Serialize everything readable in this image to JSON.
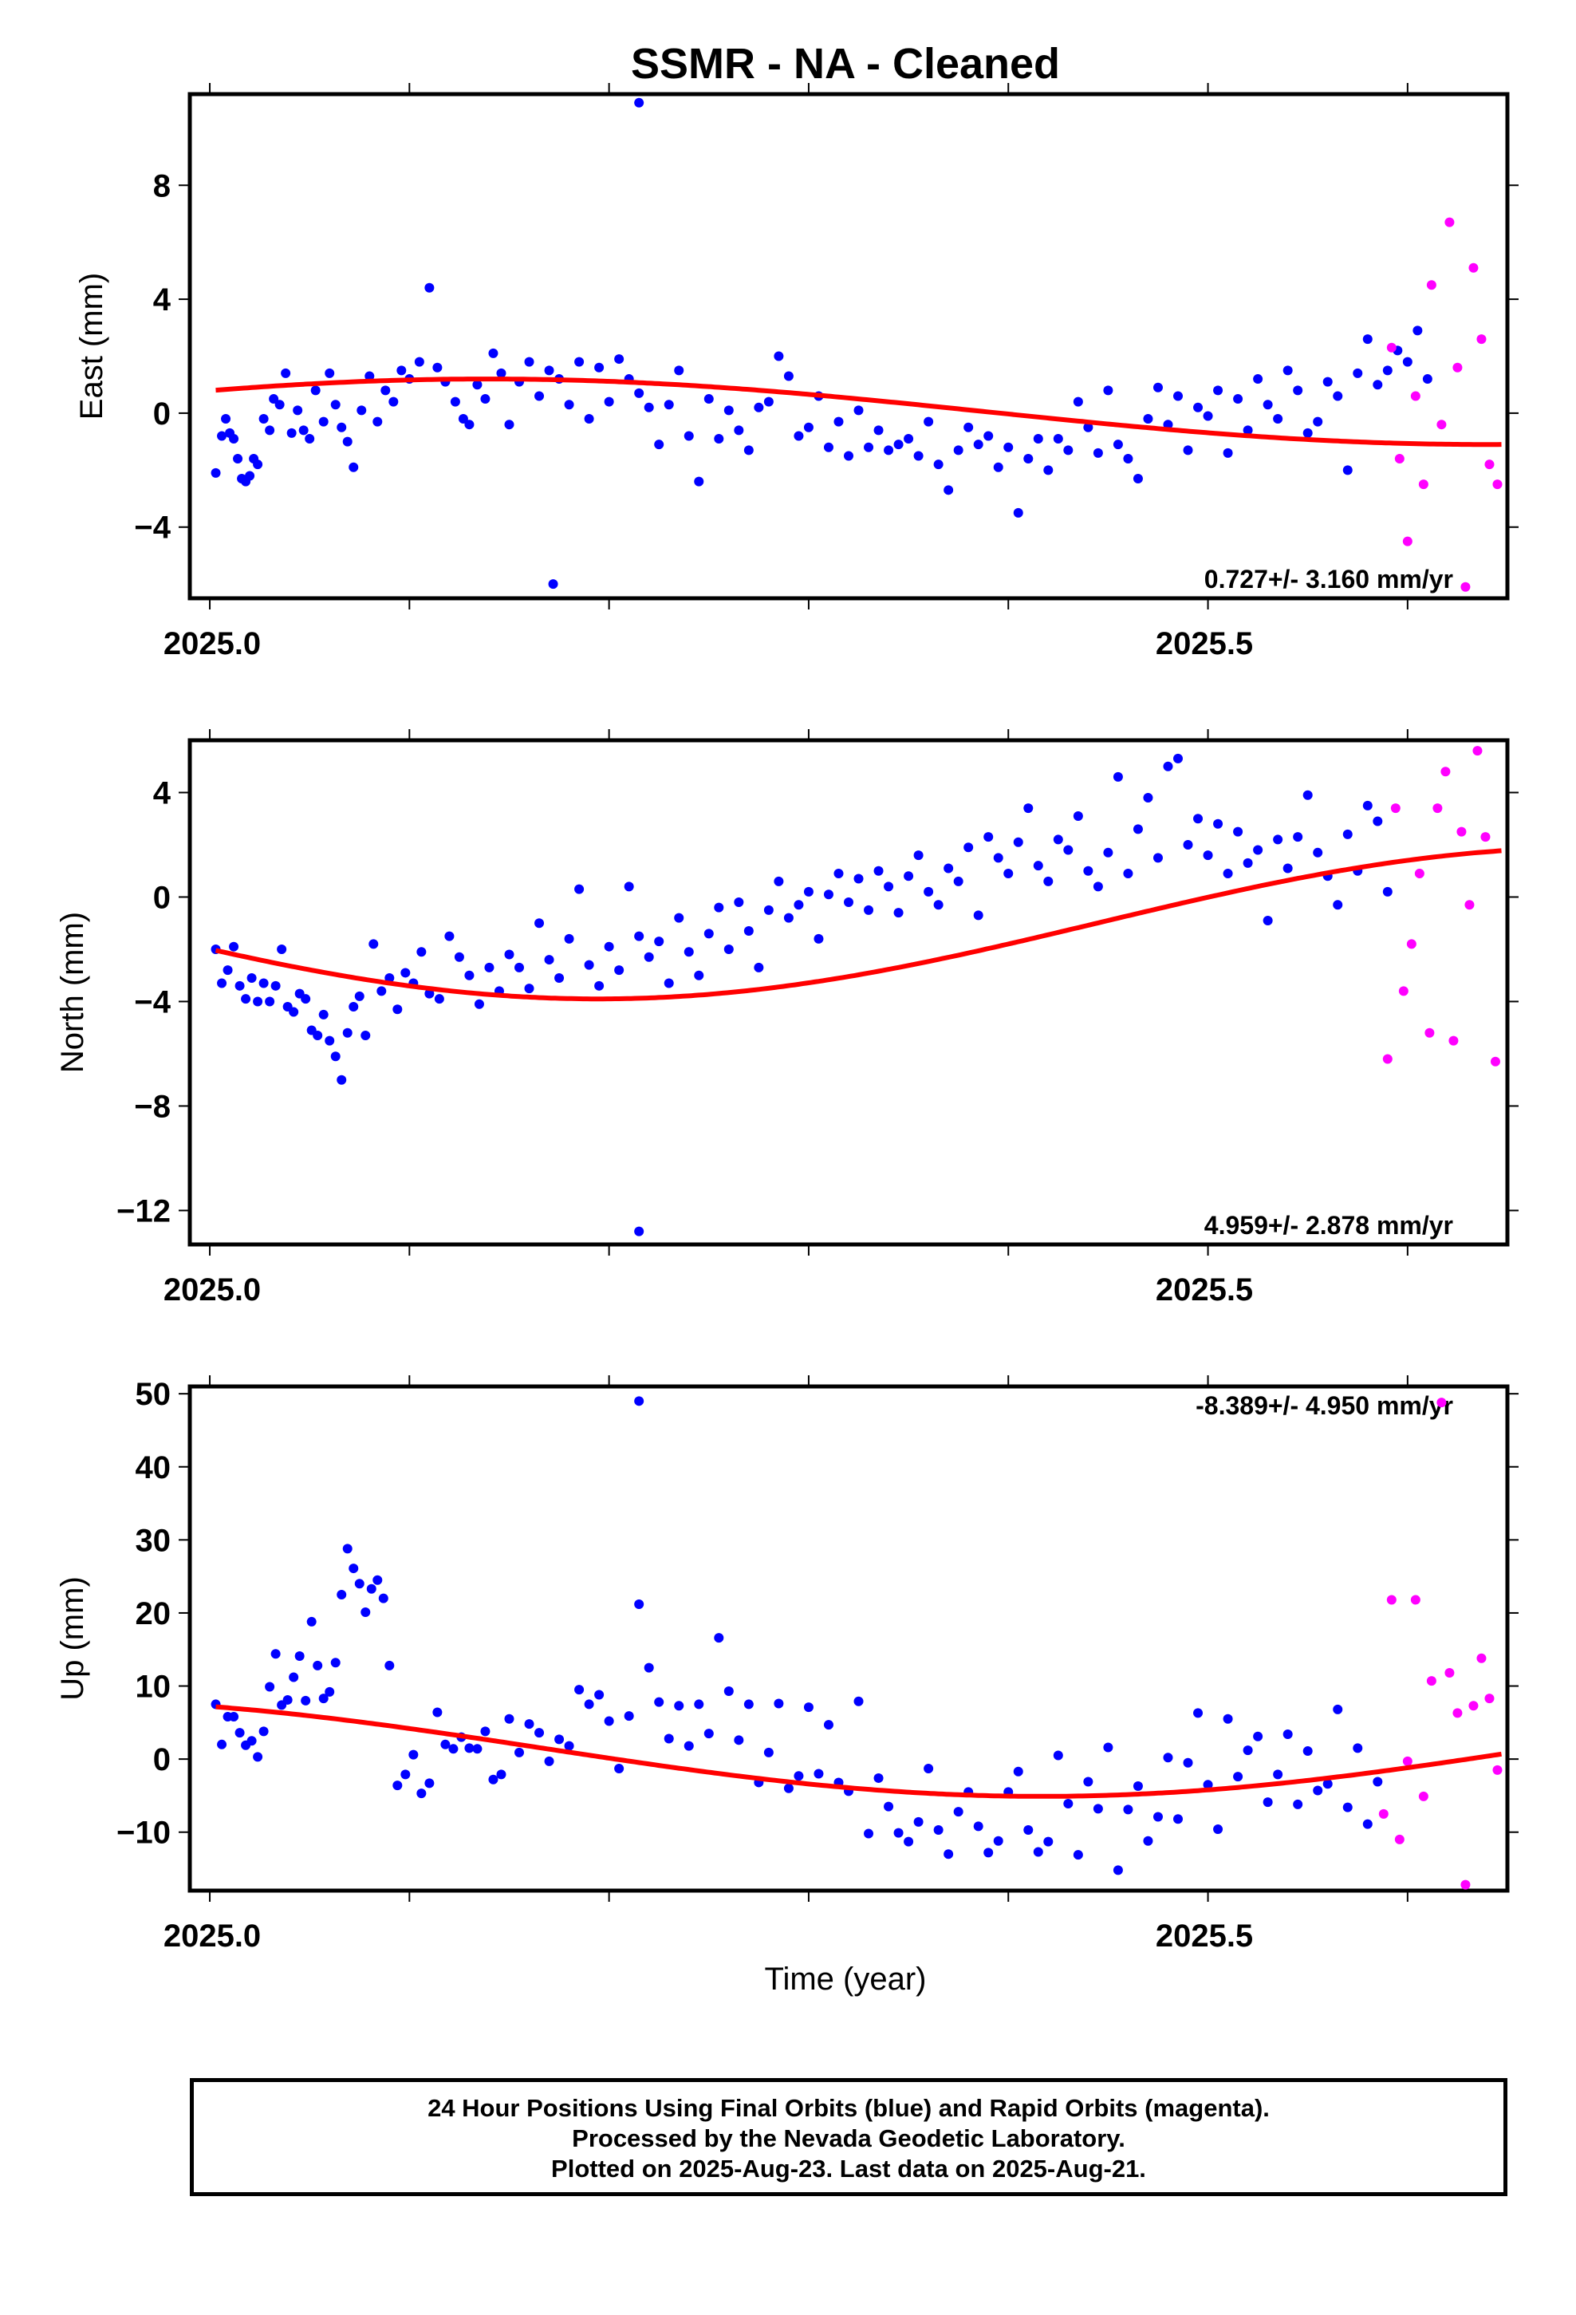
{
  "title": "SSMR  - NA - Cleaned",
  "x_axis_label": "Time (year)",
  "x_tick_labels": [
    "2025.0",
    "2025.5"
  ],
  "colors": {
    "final": "#0000ff",
    "rapid": "#ff00ff",
    "fit": "#ff0000",
    "frame": "#000000"
  },
  "footer": {
    "line1": "24 Hour Positions Using Final Orbits (blue) and Rapid Orbits (magenta).",
    "line2": "Processed by the Nevada Geodetic Laboratory.",
    "line3": "Plotted on 2025-Aug-23. Last data on 2025-Aug-21."
  },
  "chart_data": [
    {
      "type": "scatter",
      "ylabel": "East (mm)",
      "rate_label": "0.727+/- 3.160 mm/yr",
      "rate_position": "bottom-right",
      "xlim": [
        2024.99,
        2025.65
      ],
      "ylim": [
        -6.5,
        11.2
      ],
      "yticks": [
        -4,
        0,
        4,
        8
      ],
      "ytick_labels": [
        "−4",
        "0",
        "4",
        "8"
      ],
      "xticks": [
        2025.0,
        2025.1,
        2025.2,
        2025.3,
        2025.4,
        2025.5,
        2025.6
      ],
      "fit": {
        "offset": 0.05,
        "amp": 1.15,
        "phase_deg": 40
      },
      "final": {
        "x": [
          2025.003,
          2025.006,
          2025.008,
          2025.01,
          2025.012,
          2025.014,
          2025.016,
          2025.018,
          2025.02,
          2025.022,
          2025.024,
          2025.027,
          2025.03,
          2025.032,
          2025.035,
          2025.038,
          2025.041,
          2025.044,
          2025.047,
          2025.05,
          2025.053,
          2025.057,
          2025.06,
          2025.063,
          2025.066,
          2025.069,
          2025.072,
          2025.076,
          2025.08,
          2025.084,
          2025.088,
          2025.092,
          2025.096,
          2025.1,
          2025.105,
          2025.11,
          2025.114,
          2025.118,
          2025.123,
          2025.127,
          2025.13,
          2025.134,
          2025.138,
          2025.142,
          2025.146,
          2025.15,
          2025.155,
          2025.16,
          2025.165,
          2025.17,
          2025.175,
          2025.18,
          2025.185,
          2025.19,
          2025.195,
          2025.2,
          2025.205,
          2025.21,
          2025.215,
          2025.22,
          2025.225,
          2025.23,
          2025.235,
          2025.24,
          2025.245,
          2025.25,
          2025.255,
          2025.26,
          2025.265,
          2025.27,
          2025.275,
          2025.28,
          2025.285,
          2025.29,
          2025.295,
          2025.3,
          2025.305,
          2025.31,
          2025.315,
          2025.32,
          2025.325,
          2025.33,
          2025.335,
          2025.34,
          2025.345,
          2025.35,
          2025.355,
          2025.36,
          2025.365,
          2025.37,
          2025.375,
          2025.38,
          2025.385,
          2025.39,
          2025.395,
          2025.4,
          2025.405,
          2025.41,
          2025.415,
          2025.42,
          2025.425,
          2025.43,
          2025.435,
          2025.44,
          2025.445,
          2025.45,
          2025.455,
          2025.46,
          2025.465,
          2025.47,
          2025.475,
          2025.48,
          2025.485,
          2025.49,
          2025.495,
          2025.5,
          2025.505,
          2025.51,
          2025.515,
          2025.52,
          2025.525,
          2025.53,
          2025.535,
          2025.54,
          2025.545,
          2025.55,
          2025.555,
          2025.56,
          2025.565,
          2025.57,
          2025.575,
          2025.58,
          2025.585,
          2025.59,
          2025.595,
          2025.6,
          2025.605,
          2025.61,
          2025.172,
          2025.215
        ],
        "y": [
          -2.1,
          -0.8,
          -0.2,
          -0.7,
          -0.9,
          -1.6,
          -2.3,
          -2.4,
          -2.2,
          -1.6,
          -1.8,
          -0.2,
          -0.6,
          0.5,
          0.3,
          1.4,
          -0.7,
          0.1,
          -0.6,
          -0.9,
          0.8,
          -0.3,
          1.4,
          0.3,
          -0.5,
          -1.0,
          -1.9,
          0.1,
          1.3,
          -0.3,
          0.8,
          0.4,
          1.5,
          1.2,
          1.8,
          4.4,
          1.6,
          1.1,
          0.4,
          -0.2,
          -0.4,
          1.0,
          0.5,
          2.1,
          1.4,
          -0.4,
          1.1,
          1.8,
          0.6,
          1.5,
          1.2,
          0.3,
          1.8,
          -0.2,
          1.6,
          0.4,
          1.9,
          1.2,
          0.7,
          0.2,
          -1.1,
          0.3,
          1.5,
          -0.8,
          -2.4,
          0.5,
          -0.9,
          0.1,
          -0.6,
          -1.3,
          0.2,
          0.4,
          2.0,
          1.3,
          -0.8,
          -0.5,
          0.6,
          -1.2,
          -0.3,
          -1.5,
          0.1,
          -1.2,
          -0.6,
          -1.3,
          -1.1,
          -0.9,
          -1.5,
          -0.3,
          -1.8,
          -2.7,
          -1.3,
          -0.5,
          -1.1,
          -0.8,
          -1.9,
          -1.2,
          -3.5,
          -1.6,
          -0.9,
          -2.0,
          -0.9,
          -1.3,
          0.4,
          -0.5,
          -1.4,
          0.8,
          -1.1,
          -1.6,
          -2.3,
          -0.2,
          0.9,
          -0.4,
          0.6,
          -1.3,
          0.2,
          -0.1,
          0.8,
          -1.4,
          0.5,
          -0.6,
          1.2,
          0.3,
          -0.2,
          1.5,
          0.8,
          -0.7,
          -0.3,
          1.1,
          0.6,
          -2.0,
          1.4,
          2.6,
          1.0,
          1.5,
          2.2,
          1.8,
          2.9,
          1.2,
          -6.0,
          10.9
        ]
      },
      "rapid": {
        "x": [
          2025.592,
          2025.596,
          2025.6,
          2025.604,
          2025.608,
          2025.612,
          2025.617,
          2025.621,
          2025.625,
          2025.629,
          2025.633,
          2025.637,
          2025.641,
          2025.645
        ],
        "y": [
          2.3,
          -1.6,
          -4.5,
          0.6,
          -2.5,
          4.5,
          -0.4,
          6.7,
          1.6,
          -6.1,
          5.1,
          2.6,
          -1.8,
          -2.5
        ]
      }
    },
    {
      "type": "scatter",
      "ylabel": "North (mm)",
      "rate_label": "4.959+/- 2.878 mm/yr",
      "rate_position": "bottom-right",
      "xlim": [
        2024.99,
        2025.65
      ],
      "ylim": [
        -13.3,
        6.0
      ],
      "yticks": [
        -12,
        -8,
        -4,
        0,
        4
      ],
      "ytick_labels": [
        "−12",
        "−8",
        "−4",
        "0",
        "4"
      ],
      "xticks": [
        2025.0,
        2025.1,
        2025.2,
        2025.3,
        2025.4,
        2025.5,
        2025.6
      ],
      "fit": {
        "offset": -1.0,
        "amp": 2.9,
        "phase_deg": 200
      },
      "final": {
        "x": [
          2025.003,
          2025.006,
          2025.009,
          2025.012,
          2025.015,
          2025.018,
          2025.021,
          2025.024,
          2025.027,
          2025.03,
          2025.033,
          2025.036,
          2025.039,
          2025.042,
          2025.045,
          2025.048,
          2025.051,
          2025.054,
          2025.057,
          2025.06,
          2025.063,
          2025.066,
          2025.069,
          2025.072,
          2025.075,
          2025.078,
          2025.082,
          2025.086,
          2025.09,
          2025.094,
          2025.098,
          2025.102,
          2025.106,
          2025.11,
          2025.115,
          2025.12,
          2025.125,
          2025.13,
          2025.135,
          2025.14,
          2025.145,
          2025.15,
          2025.155,
          2025.16,
          2025.165,
          2025.17,
          2025.175,
          2025.18,
          2025.185,
          2025.19,
          2025.195,
          2025.2,
          2025.205,
          2025.21,
          2025.215,
          2025.22,
          2025.225,
          2025.23,
          2025.235,
          2025.24,
          2025.245,
          2025.25,
          2025.255,
          2025.26,
          2025.265,
          2025.27,
          2025.275,
          2025.28,
          2025.285,
          2025.29,
          2025.295,
          2025.3,
          2025.305,
          2025.31,
          2025.315,
          2025.32,
          2025.325,
          2025.33,
          2025.335,
          2025.34,
          2025.345,
          2025.35,
          2025.355,
          2025.36,
          2025.365,
          2025.37,
          2025.375,
          2025.38,
          2025.385,
          2025.39,
          2025.395,
          2025.4,
          2025.405,
          2025.41,
          2025.415,
          2025.42,
          2025.425,
          2025.43,
          2025.435,
          2025.44,
          2025.445,
          2025.45,
          2025.455,
          2025.46,
          2025.465,
          2025.47,
          2025.475,
          2025.48,
          2025.485,
          2025.49,
          2025.495,
          2025.5,
          2025.505,
          2025.51,
          2025.515,
          2025.52,
          2025.525,
          2025.53,
          2025.535,
          2025.54,
          2025.545,
          2025.55,
          2025.555,
          2025.56,
          2025.565,
          2025.57,
          2025.575,
          2025.58,
          2025.585,
          2025.59,
          2025.215
        ],
        "y": [
          -2.0,
          -3.3,
          -2.8,
          -1.9,
          -3.4,
          -3.9,
          -3.1,
          -4.0,
          -3.3,
          -4.0,
          -3.4,
          -2.0,
          -4.2,
          -4.4,
          -3.7,
          -3.9,
          -5.1,
          -5.3,
          -4.5,
          -5.5,
          -6.1,
          -7.0,
          -5.2,
          -4.2,
          -3.8,
          -5.3,
          -1.8,
          -3.6,
          -3.1,
          -4.3,
          -2.9,
          -3.3,
          -2.1,
          -3.7,
          -3.9,
          -1.5,
          -2.3,
          -3.0,
          -4.1,
          -2.7,
          -3.6,
          -2.2,
          -2.7,
          -3.5,
          -1.0,
          -2.4,
          -3.1,
          -1.6,
          0.3,
          -2.6,
          -3.4,
          -1.9,
          -2.8,
          0.4,
          -1.5,
          -2.3,
          -1.7,
          -3.3,
          -0.8,
          -2.1,
          -3.0,
          -1.4,
          -0.4,
          -2.0,
          -0.2,
          -1.3,
          -2.7,
          -0.5,
          0.6,
          -0.8,
          -0.3,
          0.2,
          -1.6,
          0.1,
          0.9,
          -0.2,
          0.7,
          -0.5,
          1.0,
          0.4,
          -0.6,
          0.8,
          1.6,
          0.2,
          -0.3,
          1.1,
          0.6,
          1.9,
          -0.7,
          2.3,
          1.5,
          0.9,
          2.1,
          3.4,
          1.2,
          0.6,
          2.2,
          1.8,
          3.1,
          1.0,
          0.4,
          1.7,
          4.6,
          0.9,
          2.6,
          3.8,
          1.5,
          5.0,
          5.3,
          2.0,
          3.0,
          1.6,
          2.8,
          0.9,
          2.5,
          1.3,
          1.8,
          -0.9,
          2.2,
          1.1,
          2.3,
          3.9,
          1.7,
          0.8,
          -0.3,
          2.4,
          1.0,
          3.5,
          2.9,
          0.2,
          -12.8
        ]
      },
      "rapid": {
        "x": [
          2025.59,
          2025.594,
          2025.598,
          2025.602,
          2025.606,
          2025.611,
          2025.615,
          2025.619,
          2025.623,
          2025.627,
          2025.631,
          2025.635,
          2025.639,
          2025.644
        ],
        "y": [
          -6.2,
          3.4,
          -3.6,
          -1.8,
          0.9,
          -5.2,
          3.4,
          4.8,
          -5.5,
          2.5,
          -0.3,
          5.6,
          2.3,
          -6.3
        ]
      }
    },
    {
      "type": "scatter",
      "ylabel": "Up (mm)",
      "rate_label": "-8.389+/- 4.950 mm/yr",
      "rate_position": "top-right",
      "xlim": [
        2024.99,
        2025.65
      ],
      "ylim": [
        -18.0,
        51.0
      ],
      "yticks": [
        -10,
        0,
        10,
        20,
        30,
        40,
        50
      ],
      "ytick_labels": [
        "−10",
        "0",
        "10",
        "20",
        "30",
        "40",
        "50"
      ],
      "xticks": [
        2025.0,
        2025.1,
        2025.2,
        2025.3,
        2025.4,
        2025.5,
        2025.6
      ],
      "fit": {
        "offset": 1.5,
        "amp": 6.6,
        "phase_deg": 120
      },
      "final": {
        "x": [
          2025.003,
          2025.006,
          2025.009,
          2025.012,
          2025.015,
          2025.018,
          2025.021,
          2025.024,
          2025.027,
          2025.03,
          2025.033,
          2025.036,
          2025.039,
          2025.042,
          2025.045,
          2025.048,
          2025.051,
          2025.054,
          2025.057,
          2025.06,
          2025.063,
          2025.066,
          2025.069,
          2025.072,
          2025.075,
          2025.078,
          2025.081,
          2025.084,
          2025.087,
          2025.09,
          2025.094,
          2025.098,
          2025.102,
          2025.106,
          2025.11,
          2025.114,
          2025.118,
          2025.122,
          2025.126,
          2025.13,
          2025.134,
          2025.138,
          2025.142,
          2025.146,
          2025.15,
          2025.155,
          2025.16,
          2025.165,
          2025.17,
          2025.175,
          2025.18,
          2025.185,
          2025.19,
          2025.195,
          2025.2,
          2025.205,
          2025.21,
          2025.215,
          2025.22,
          2025.225,
          2025.23,
          2025.235,
          2025.24,
          2025.245,
          2025.25,
          2025.255,
          2025.26,
          2025.265,
          2025.27,
          2025.275,
          2025.28,
          2025.285,
          2025.29,
          2025.295,
          2025.3,
          2025.305,
          2025.31,
          2025.315,
          2025.32,
          2025.325,
          2025.33,
          2025.335,
          2025.34,
          2025.345,
          2025.35,
          2025.355,
          2025.36,
          2025.365,
          2025.37,
          2025.375,
          2025.38,
          2025.385,
          2025.39,
          2025.395,
          2025.4,
          2025.405,
          2025.41,
          2025.415,
          2025.42,
          2025.425,
          2025.43,
          2025.435,
          2025.44,
          2025.445,
          2025.45,
          2025.455,
          2025.46,
          2025.465,
          2025.47,
          2025.475,
          2025.48,
          2025.485,
          2025.49,
          2025.495,
          2025.5,
          2025.505,
          2025.51,
          2025.515,
          2025.52,
          2025.525,
          2025.53,
          2025.535,
          2025.54,
          2025.545,
          2025.55,
          2025.555,
          2025.56,
          2025.565,
          2025.57,
          2025.575,
          2025.58,
          2025.585,
          2025.215
        ],
        "y": [
          7.5,
          2.0,
          5.8,
          5.8,
          3.6,
          1.9,
          2.5,
          0.3,
          3.8,
          9.9,
          14.4,
          7.4,
          8.1,
          11.2,
          14.1,
          8.0,
          18.8,
          12.8,
          8.3,
          9.2,
          13.2,
          22.5,
          28.8,
          26.1,
          24.0,
          20.1,
          23.3,
          24.5,
          22.0,
          12.8,
          -3.6,
          -2.1,
          0.6,
          -4.7,
          -3.3,
          6.4,
          2.0,
          1.4,
          3.0,
          1.5,
          1.4,
          3.8,
          -2.8,
          -2.1,
          5.5,
          0.9,
          4.8,
          3.6,
          -0.3,
          2.7,
          1.8,
          9.5,
          7.5,
          8.8,
          5.2,
          -1.3,
          5.9,
          21.2,
          12.5,
          7.8,
          2.8,
          7.3,
          1.8,
          7.5,
          3.5,
          16.6,
          9.3,
          2.6,
          7.5,
          -3.2,
          0.9,
          7.6,
          -4.0,
          -2.3,
          7.1,
          -2.0,
          4.7,
          -3.2,
          -4.4,
          7.9,
          -10.2,
          -2.6,
          -6.5,
          -10.1,
          -11.3,
          -8.6,
          -1.3,
          -9.7,
          -13.0,
          -7.2,
          -4.5,
          -9.2,
          -12.8,
          -11.2,
          -4.5,
          -1.7,
          -9.7,
          -12.7,
          -11.3,
          0.5,
          -6.1,
          -13.1,
          -3.1,
          -6.8,
          1.6,
          -15.2,
          -6.9,
          -3.7,
          -11.2,
          -7.9,
          0.2,
          -8.2,
          -0.5,
          6.3,
          -3.5,
          -9.6,
          5.5,
          -2.4,
          1.2,
          3.1,
          -5.9,
          -2.1,
          3.4,
          -6.2,
          1.1,
          -4.3,
          -3.4,
          6.8,
          -6.6,
          1.5,
          -8.9,
          -3.1,
          49.0
        ]
      },
      "rapid": {
        "x": [
          2025.588,
          2025.592,
          2025.596,
          2025.6,
          2025.604,
          2025.608,
          2025.612,
          2025.617,
          2025.621,
          2025.625,
          2025.629,
          2025.633,
          2025.637,
          2025.641,
          2025.645
        ],
        "y": [
          -7.5,
          21.8,
          -11.0,
          -0.3,
          21.8,
          -5.1,
          10.7,
          48.8,
          11.8,
          6.3,
          -17.2,
          7.3,
          13.8,
          8.3,
          -1.5
        ]
      }
    }
  ]
}
